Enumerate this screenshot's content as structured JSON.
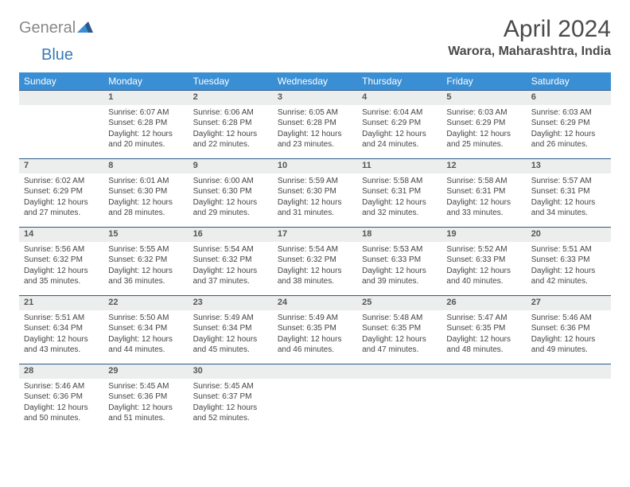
{
  "logo": {
    "part1": "General",
    "part2": "Blue"
  },
  "title": "April 2024",
  "location": "Warora, Maharashtra, India",
  "weekdays": [
    "Sunday",
    "Monday",
    "Tuesday",
    "Wednesday",
    "Thursday",
    "Friday",
    "Saturday"
  ],
  "colors": {
    "header_bg": "#3a8fd4",
    "header_text": "#ffffff",
    "daynum_bg": "#eceded",
    "border": "#2b5a8a",
    "logo_gray": "#888888",
    "logo_blue": "#3a7ab8",
    "text": "#444444"
  },
  "weeks": [
    {
      "nums": [
        "",
        "1",
        "2",
        "3",
        "4",
        "5",
        "6"
      ],
      "cells": [
        {
          "empty": true
        },
        {
          "sunrise": "Sunrise: 6:07 AM",
          "sunset": "Sunset: 6:28 PM",
          "day1": "Daylight: 12 hours",
          "day2": "and 20 minutes."
        },
        {
          "sunrise": "Sunrise: 6:06 AM",
          "sunset": "Sunset: 6:28 PM",
          "day1": "Daylight: 12 hours",
          "day2": "and 22 minutes."
        },
        {
          "sunrise": "Sunrise: 6:05 AM",
          "sunset": "Sunset: 6:28 PM",
          "day1": "Daylight: 12 hours",
          "day2": "and 23 minutes."
        },
        {
          "sunrise": "Sunrise: 6:04 AM",
          "sunset": "Sunset: 6:29 PM",
          "day1": "Daylight: 12 hours",
          "day2": "and 24 minutes."
        },
        {
          "sunrise": "Sunrise: 6:03 AM",
          "sunset": "Sunset: 6:29 PM",
          "day1": "Daylight: 12 hours",
          "day2": "and 25 minutes."
        },
        {
          "sunrise": "Sunrise: 6:03 AM",
          "sunset": "Sunset: 6:29 PM",
          "day1": "Daylight: 12 hours",
          "day2": "and 26 minutes."
        }
      ]
    },
    {
      "nums": [
        "7",
        "8",
        "9",
        "10",
        "11",
        "12",
        "13"
      ],
      "cells": [
        {
          "sunrise": "Sunrise: 6:02 AM",
          "sunset": "Sunset: 6:29 PM",
          "day1": "Daylight: 12 hours",
          "day2": "and 27 minutes."
        },
        {
          "sunrise": "Sunrise: 6:01 AM",
          "sunset": "Sunset: 6:30 PM",
          "day1": "Daylight: 12 hours",
          "day2": "and 28 minutes."
        },
        {
          "sunrise": "Sunrise: 6:00 AM",
          "sunset": "Sunset: 6:30 PM",
          "day1": "Daylight: 12 hours",
          "day2": "and 29 minutes."
        },
        {
          "sunrise": "Sunrise: 5:59 AM",
          "sunset": "Sunset: 6:30 PM",
          "day1": "Daylight: 12 hours",
          "day2": "and 31 minutes."
        },
        {
          "sunrise": "Sunrise: 5:58 AM",
          "sunset": "Sunset: 6:31 PM",
          "day1": "Daylight: 12 hours",
          "day2": "and 32 minutes."
        },
        {
          "sunrise": "Sunrise: 5:58 AM",
          "sunset": "Sunset: 6:31 PM",
          "day1": "Daylight: 12 hours",
          "day2": "and 33 minutes."
        },
        {
          "sunrise": "Sunrise: 5:57 AM",
          "sunset": "Sunset: 6:31 PM",
          "day1": "Daylight: 12 hours",
          "day2": "and 34 minutes."
        }
      ]
    },
    {
      "nums": [
        "14",
        "15",
        "16",
        "17",
        "18",
        "19",
        "20"
      ],
      "cells": [
        {
          "sunrise": "Sunrise: 5:56 AM",
          "sunset": "Sunset: 6:32 PM",
          "day1": "Daylight: 12 hours",
          "day2": "and 35 minutes."
        },
        {
          "sunrise": "Sunrise: 5:55 AM",
          "sunset": "Sunset: 6:32 PM",
          "day1": "Daylight: 12 hours",
          "day2": "and 36 minutes."
        },
        {
          "sunrise": "Sunrise: 5:54 AM",
          "sunset": "Sunset: 6:32 PM",
          "day1": "Daylight: 12 hours",
          "day2": "and 37 minutes."
        },
        {
          "sunrise": "Sunrise: 5:54 AM",
          "sunset": "Sunset: 6:32 PM",
          "day1": "Daylight: 12 hours",
          "day2": "and 38 minutes."
        },
        {
          "sunrise": "Sunrise: 5:53 AM",
          "sunset": "Sunset: 6:33 PM",
          "day1": "Daylight: 12 hours",
          "day2": "and 39 minutes."
        },
        {
          "sunrise": "Sunrise: 5:52 AM",
          "sunset": "Sunset: 6:33 PM",
          "day1": "Daylight: 12 hours",
          "day2": "and 40 minutes."
        },
        {
          "sunrise": "Sunrise: 5:51 AM",
          "sunset": "Sunset: 6:33 PM",
          "day1": "Daylight: 12 hours",
          "day2": "and 42 minutes."
        }
      ]
    },
    {
      "nums": [
        "21",
        "22",
        "23",
        "24",
        "25",
        "26",
        "27"
      ],
      "cells": [
        {
          "sunrise": "Sunrise: 5:51 AM",
          "sunset": "Sunset: 6:34 PM",
          "day1": "Daylight: 12 hours",
          "day2": "and 43 minutes."
        },
        {
          "sunrise": "Sunrise: 5:50 AM",
          "sunset": "Sunset: 6:34 PM",
          "day1": "Daylight: 12 hours",
          "day2": "and 44 minutes."
        },
        {
          "sunrise": "Sunrise: 5:49 AM",
          "sunset": "Sunset: 6:34 PM",
          "day1": "Daylight: 12 hours",
          "day2": "and 45 minutes."
        },
        {
          "sunrise": "Sunrise: 5:49 AM",
          "sunset": "Sunset: 6:35 PM",
          "day1": "Daylight: 12 hours",
          "day2": "and 46 minutes."
        },
        {
          "sunrise": "Sunrise: 5:48 AM",
          "sunset": "Sunset: 6:35 PM",
          "day1": "Daylight: 12 hours",
          "day2": "and 47 minutes."
        },
        {
          "sunrise": "Sunrise: 5:47 AM",
          "sunset": "Sunset: 6:35 PM",
          "day1": "Daylight: 12 hours",
          "day2": "and 48 minutes."
        },
        {
          "sunrise": "Sunrise: 5:46 AM",
          "sunset": "Sunset: 6:36 PM",
          "day1": "Daylight: 12 hours",
          "day2": "and 49 minutes."
        }
      ]
    },
    {
      "nums": [
        "28",
        "29",
        "30",
        "",
        "",
        "",
        ""
      ],
      "cells": [
        {
          "sunrise": "Sunrise: 5:46 AM",
          "sunset": "Sunset: 6:36 PM",
          "day1": "Daylight: 12 hours",
          "day2": "and 50 minutes."
        },
        {
          "sunrise": "Sunrise: 5:45 AM",
          "sunset": "Sunset: 6:36 PM",
          "day1": "Daylight: 12 hours",
          "day2": "and 51 minutes."
        },
        {
          "sunrise": "Sunrise: 5:45 AM",
          "sunset": "Sunset: 6:37 PM",
          "day1": "Daylight: 12 hours",
          "day2": "and 52 minutes."
        },
        {
          "empty": true
        },
        {
          "empty": true
        },
        {
          "empty": true
        },
        {
          "empty": true
        }
      ]
    }
  ]
}
